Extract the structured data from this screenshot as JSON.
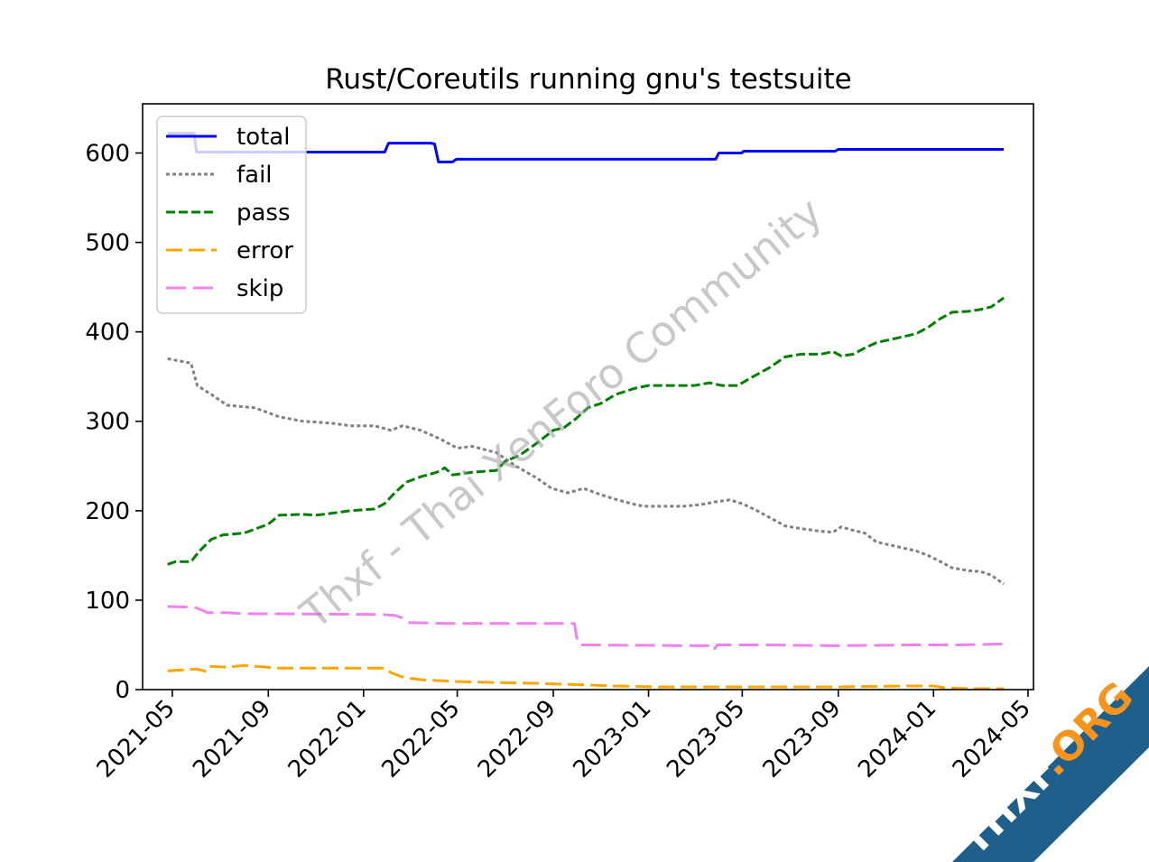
{
  "chart_data": {
    "type": "line",
    "title": "Rust/Coreutils running gnu's testsuite",
    "xlabel": "",
    "ylabel": "",
    "xlim": [
      "2021-03-24",
      "2024-05-08"
    ],
    "ylim": [
      0,
      655
    ],
    "x_ticks": [
      "2021-05",
      "2021-09",
      "2022-01",
      "2022-05",
      "2022-09",
      "2023-01",
      "2023-05",
      "2023-09",
      "2024-01",
      "2024-05"
    ],
    "y_ticks": [
      0,
      100,
      200,
      300,
      400,
      500,
      600
    ],
    "legend_position": "top-left",
    "grid": false,
    "series": [
      {
        "name": "total",
        "color": "#0000ff",
        "style": "solid",
        "points": [
          [
            "2021-04-25",
            622
          ],
          [
            "2021-05-29",
            622
          ],
          [
            "2021-06-01",
            601
          ],
          [
            "2022-01-28",
            601
          ],
          [
            "2022-02-02",
            611
          ],
          [
            "2022-03-28",
            611
          ],
          [
            "2022-04-02",
            610
          ],
          [
            "2022-04-07",
            590
          ],
          [
            "2022-04-25",
            590
          ],
          [
            "2022-04-30",
            593
          ],
          [
            "2023-03-28",
            593
          ],
          [
            "2023-04-01",
            600
          ],
          [
            "2023-04-30",
            600
          ],
          [
            "2023-05-03",
            602
          ],
          [
            "2023-08-28",
            602
          ],
          [
            "2023-09-01",
            604
          ],
          [
            "2024-03-31",
            604
          ]
        ]
      },
      {
        "name": "fail",
        "color": "#808080",
        "style": "dotted",
        "points": [
          [
            "2021-04-25",
            370
          ],
          [
            "2021-05-25",
            365
          ],
          [
            "2021-06-02",
            340
          ],
          [
            "2021-06-20",
            330
          ],
          [
            "2021-07-10",
            318
          ],
          [
            "2021-08-15",
            315
          ],
          [
            "2021-09-15",
            305
          ],
          [
            "2021-10-15",
            300
          ],
          [
            "2021-11-20",
            298
          ],
          [
            "2021-12-15",
            295
          ],
          [
            "2022-01-15",
            295
          ],
          [
            "2022-02-05",
            290
          ],
          [
            "2022-02-20",
            295
          ],
          [
            "2022-03-15",
            290
          ],
          [
            "2022-04-10",
            280
          ],
          [
            "2022-05-01",
            270
          ],
          [
            "2022-05-20",
            272
          ],
          [
            "2022-06-20",
            265
          ],
          [
            "2022-07-15",
            250
          ],
          [
            "2022-08-10",
            237
          ],
          [
            "2022-08-30",
            225
          ],
          [
            "2022-09-20",
            220
          ],
          [
            "2022-10-10",
            225
          ],
          [
            "2022-10-25",
            220
          ],
          [
            "2022-11-15",
            214
          ],
          [
            "2022-12-10",
            208
          ],
          [
            "2022-12-25",
            205
          ],
          [
            "2023-01-20",
            205
          ],
          [
            "2023-02-15",
            205
          ],
          [
            "2023-03-10",
            207
          ],
          [
            "2023-03-28",
            210
          ],
          [
            "2023-04-15",
            212
          ],
          [
            "2023-05-01",
            208
          ],
          [
            "2023-05-20",
            200
          ],
          [
            "2023-06-10",
            190
          ],
          [
            "2023-06-25",
            183
          ],
          [
            "2023-07-15",
            180
          ],
          [
            "2023-08-10",
            177
          ],
          [
            "2023-08-25",
            176
          ],
          [
            "2023-09-05",
            182
          ],
          [
            "2023-09-20",
            178
          ],
          [
            "2023-10-05",
            175
          ],
          [
            "2023-10-20",
            165
          ],
          [
            "2023-11-15",
            160
          ],
          [
            "2023-12-10",
            155
          ],
          [
            "2023-12-25",
            150
          ],
          [
            "2024-01-10",
            143
          ],
          [
            "2024-01-25",
            136
          ],
          [
            "2024-02-15",
            133
          ],
          [
            "2024-03-01",
            132
          ],
          [
            "2024-03-15",
            128
          ],
          [
            "2024-03-31",
            118
          ]
        ]
      },
      {
        "name": "pass",
        "color": "#008000",
        "style": "dashed",
        "points": [
          [
            "2021-04-25",
            140
          ],
          [
            "2021-05-05",
            143
          ],
          [
            "2021-05-25",
            143
          ],
          [
            "2021-06-05",
            155
          ],
          [
            "2021-06-20",
            168
          ],
          [
            "2021-07-05",
            173
          ],
          [
            "2021-08-01",
            175
          ],
          [
            "2021-09-01",
            185
          ],
          [
            "2021-09-15",
            195
          ],
          [
            "2021-10-15",
            196
          ],
          [
            "2021-11-01",
            195
          ],
          [
            "2021-11-20",
            197
          ],
          [
            "2021-12-15",
            200
          ],
          [
            "2022-01-15",
            202
          ],
          [
            "2022-01-28",
            208
          ],
          [
            "2022-02-10",
            220
          ],
          [
            "2022-02-25",
            232
          ],
          [
            "2022-03-15",
            238
          ],
          [
            "2022-04-05",
            243
          ],
          [
            "2022-04-15",
            248
          ],
          [
            "2022-04-25",
            240
          ],
          [
            "2022-05-20",
            243
          ],
          [
            "2022-06-20",
            245
          ],
          [
            "2022-07-01",
            255
          ],
          [
            "2022-07-20",
            262
          ],
          [
            "2022-08-10",
            275
          ],
          [
            "2022-09-01",
            290
          ],
          [
            "2022-09-15",
            293
          ],
          [
            "2022-09-30",
            303
          ],
          [
            "2022-10-15",
            315
          ],
          [
            "2022-11-01",
            320
          ],
          [
            "2022-11-20",
            330
          ],
          [
            "2022-12-15",
            337
          ],
          [
            "2023-01-01",
            340
          ],
          [
            "2023-02-01",
            340
          ],
          [
            "2023-03-01",
            340
          ],
          [
            "2023-03-20",
            343
          ],
          [
            "2023-04-05",
            340
          ],
          [
            "2023-04-25",
            340
          ],
          [
            "2023-05-15",
            350
          ],
          [
            "2023-06-05",
            360
          ],
          [
            "2023-06-25",
            372
          ],
          [
            "2023-07-15",
            375
          ],
          [
            "2023-08-10",
            375
          ],
          [
            "2023-08-25",
            378
          ],
          [
            "2023-09-05",
            373
          ],
          [
            "2023-09-20",
            375
          ],
          [
            "2023-10-05",
            382
          ],
          [
            "2023-10-20",
            388
          ],
          [
            "2023-11-15",
            393
          ],
          [
            "2023-12-10",
            398
          ],
          [
            "2023-12-25",
            405
          ],
          [
            "2024-01-10",
            415
          ],
          [
            "2024-01-25",
            422
          ],
          [
            "2024-02-15",
            423
          ],
          [
            "2024-03-01",
            425
          ],
          [
            "2024-03-15",
            428
          ],
          [
            "2024-03-31",
            438
          ]
        ]
      },
      {
        "name": "error",
        "color": "#ffa500",
        "style": "longdash",
        "points": [
          [
            "2021-04-25",
            21
          ],
          [
            "2021-06-01",
            23
          ],
          [
            "2021-06-15",
            20
          ],
          [
            "2021-06-20",
            26
          ],
          [
            "2021-07-10",
            25
          ],
          [
            "2021-08-01",
            27
          ],
          [
            "2021-09-15",
            24
          ],
          [
            "2022-01-28",
            24
          ],
          [
            "2022-02-05",
            19
          ],
          [
            "2022-02-20",
            14
          ],
          [
            "2022-03-15",
            11
          ],
          [
            "2022-04-10",
            10
          ],
          [
            "2022-05-01",
            9
          ],
          [
            "2022-06-15",
            8
          ],
          [
            "2022-08-15",
            7
          ],
          [
            "2022-09-15",
            6
          ],
          [
            "2022-10-20",
            5
          ],
          [
            "2022-11-15",
            4
          ],
          [
            "2023-01-15",
            3
          ],
          [
            "2023-04-01",
            3
          ],
          [
            "2023-06-01",
            3
          ],
          [
            "2023-09-01",
            3
          ],
          [
            "2023-12-01",
            4
          ],
          [
            "2024-01-01",
            4
          ],
          [
            "2024-01-15",
            2
          ],
          [
            "2024-02-15",
            1
          ],
          [
            "2024-03-31",
            1
          ]
        ]
      },
      {
        "name": "skip",
        "color": "#ee82ee",
        "style": "dashdot",
        "points": [
          [
            "2021-04-25",
            93
          ],
          [
            "2021-05-29",
            92
          ],
          [
            "2021-06-05",
            90
          ],
          [
            "2021-06-15",
            86
          ],
          [
            "2021-07-10",
            86
          ],
          [
            "2021-08-01",
            85
          ],
          [
            "2022-01-25",
            84
          ],
          [
            "2022-02-10",
            83
          ],
          [
            "2022-02-20",
            80
          ],
          [
            "2022-03-01",
            75
          ],
          [
            "2022-04-15",
            74
          ],
          [
            "2022-05-01",
            74
          ],
          [
            "2022-09-15",
            74
          ],
          [
            "2022-09-28",
            74
          ],
          [
            "2022-10-01",
            58
          ],
          [
            "2022-10-05",
            50
          ],
          [
            "2023-03-20",
            49
          ],
          [
            "2023-03-25",
            44
          ],
          [
            "2023-03-30",
            50
          ],
          [
            "2023-06-01",
            50
          ],
          [
            "2023-09-01",
            49
          ],
          [
            "2023-12-01",
            50
          ],
          [
            "2024-01-01",
            50
          ],
          [
            "2024-02-01",
            50
          ],
          [
            "2024-03-31",
            51
          ]
        ]
      }
    ]
  },
  "watermark": {
    "text": "Thxf - Thai XenForo Community",
    "color": "#9a9a9a"
  },
  "badge": {
    "text_main": "THXF",
    "text_accent": ".ORG",
    "background": "#1f5f8b",
    "accent_color": "#f7941d"
  }
}
